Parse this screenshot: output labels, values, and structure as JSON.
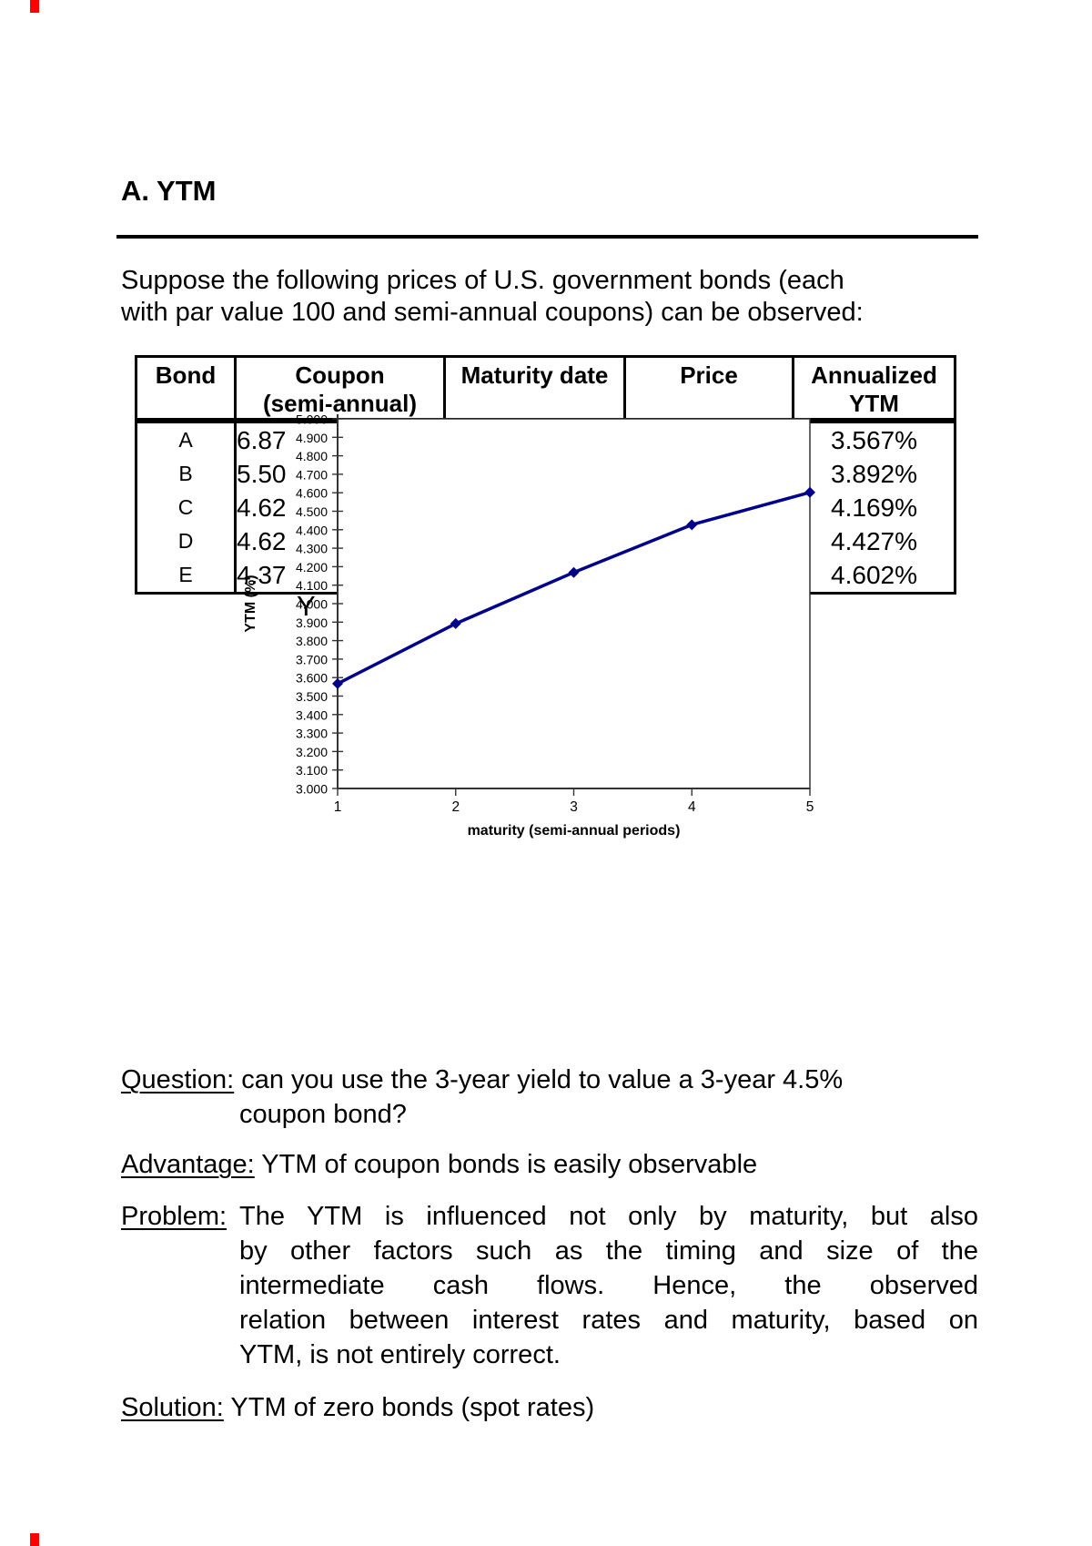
{
  "page": {
    "heading": "A. YTM"
  },
  "intro": {
    "line1": "Suppose the following prices of U.S. government bonds (each",
    "line2": "with par value 100 and semi-annual coupons) can be observed:"
  },
  "table": {
    "headers": {
      "bond": "Bond",
      "coupon_line1": "Coupon",
      "coupon_line2": "(semi-annual)",
      "maturity": "Maturity date",
      "price": "Price",
      "ytm_line1": "Annualized",
      "ytm_line2": "YTM"
    },
    "rows": [
      {
        "bond": "A",
        "coupon_visible": "6.87",
        "ytm": "3.567%"
      },
      {
        "bond": "B",
        "coupon_visible": "5.50",
        "ytm": "3.892%"
      },
      {
        "bond": "C",
        "coupon_visible": "4.62",
        "ytm": "4.169%"
      },
      {
        "bond": "D",
        "coupon_visible": "4.62",
        "ytm": "4.427%"
      },
      {
        "bond": "E",
        "coupon_visible": "4.37",
        "ytm": "4.602%"
      }
    ]
  },
  "stray_text": "Y",
  "chart_data": {
    "type": "line",
    "x": [
      1,
      2,
      3,
      4,
      5
    ],
    "series": [
      {
        "name": "Annualized YTM",
        "values": [
          3.567,
          3.892,
          4.169,
          4.427,
          4.602
        ]
      }
    ],
    "xlabel": "maturity (semi-annual periods)",
    "ylabel": "YTM (%)",
    "xlim": [
      1,
      5
    ],
    "ylim": [
      3.0,
      5.0
    ],
    "ytick_step": 0.1,
    "ytick_decimals": 3,
    "grid": false,
    "legend": "none",
    "line_color": "#00008B",
    "axis_color": "#333333",
    "marker": "diamond"
  },
  "qa": {
    "question": {
      "label": "Question:",
      "line1": "can you use the 3-year yield to value a 3-year 4.5%",
      "line2": "coupon bond?"
    },
    "advantage": {
      "label": "Advantage:",
      "text": "YTM of coupon bonds is easily observable"
    },
    "problem": {
      "label": "Problem:",
      "lines": [
        "The YTM is influenced not only by maturity, but also",
        "by other factors such as the timing and size of the",
        "intermediate cash flows. Hence, the observed",
        "relation between interest rates and maturity, based on",
        "YTM, is not entirely correct."
      ]
    },
    "solution": {
      "label": "Solution:",
      "text": "YTM of zero bonds (spot rates)"
    }
  }
}
